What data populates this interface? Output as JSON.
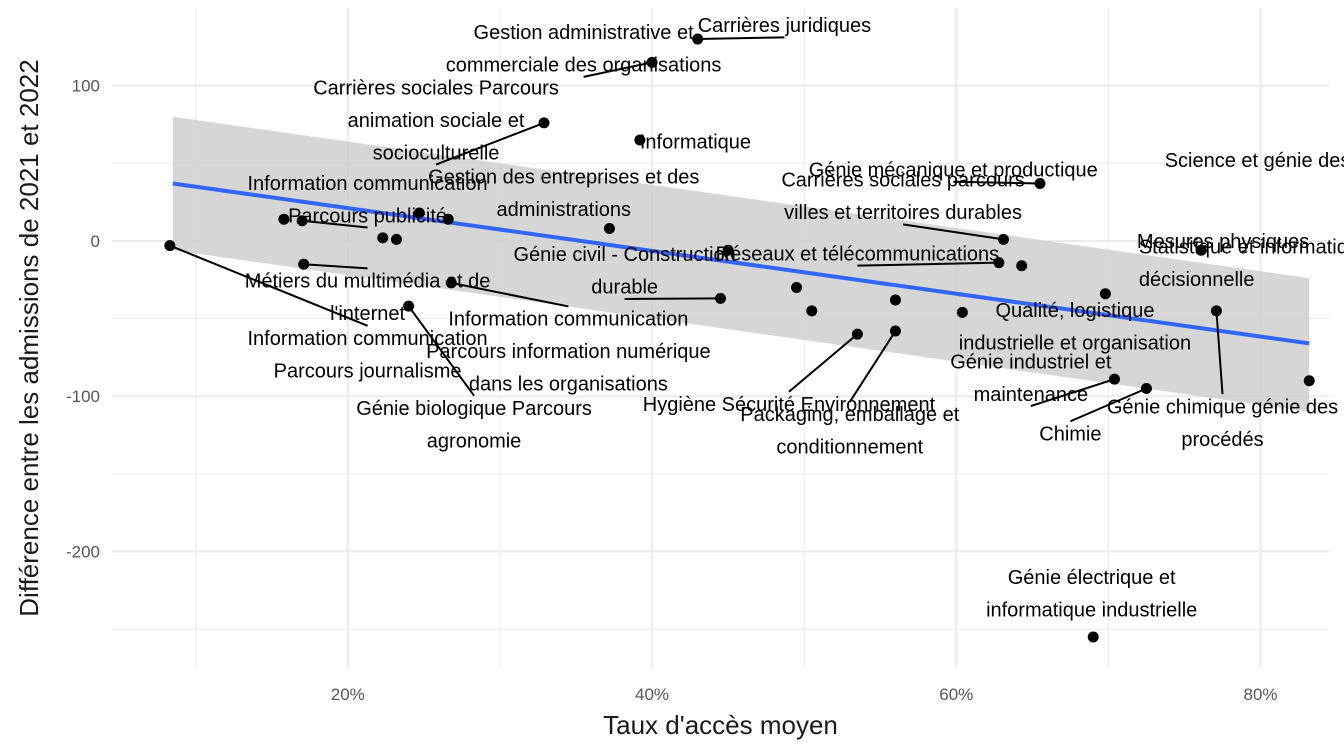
{
  "chart_data": {
    "type": "scatter",
    "title": "",
    "xlabel": "Taux d'accès moyen",
    "ylabel": "Différence entre les admissions de 2021 et 2022",
    "xlim": [
      0.045,
      0.845
    ],
    "ylim": [
      -275,
      150
    ],
    "x_ticks": [
      {
        "value": 0.2,
        "label": "20%"
      },
      {
        "value": 0.4,
        "label": "40%"
      },
      {
        "value": 0.6,
        "label": "60%"
      },
      {
        "value": 0.8,
        "label": "80%"
      }
    ],
    "x_minor_ticks": [
      0.1,
      0.3,
      0.5,
      0.7
    ],
    "y_ticks": [
      {
        "value": 100,
        "label": "100"
      },
      {
        "value": 0,
        "label": "0"
      },
      {
        "value": -100,
        "label": "-100"
      },
      {
        "value": -200,
        "label": "-200"
      }
    ],
    "y_minor_ticks": [
      -250,
      -150,
      -50,
      50
    ],
    "grid": true,
    "colors": {
      "points": "#000000",
      "trend": "#3366FF",
      "ribbon": "#CCCCCC",
      "grid": "#EBEBEB",
      "leader": "#000000"
    },
    "trend": {
      "type": "linear",
      "x": [
        0.085,
        0.832
      ],
      "y": [
        37,
        -66
      ],
      "ci_upper": [
        80,
        -24
      ],
      "ci_lower": [
        -6,
        -110
      ]
    },
    "points": [
      {
        "x": 0.083,
        "y": -3,
        "label": "Information communication\nParcours journalisme",
        "lx": 0.213,
        "ly": -73,
        "anchor": "middle"
      },
      {
        "x": 0.158,
        "y": 14
      },
      {
        "x": 0.17,
        "y": 13,
        "label": "Information communication\nParcours publicité",
        "lx": 0.213,
        "ly": 27,
        "anchor": "middle"
      },
      {
        "x": 0.171,
        "y": -15,
        "label": "Métiers du multimédia et de\nl'internet",
        "lx": 0.213,
        "ly": -36,
        "anchor": "middle"
      },
      {
        "x": 0.223,
        "y": 2
      },
      {
        "x": 0.232,
        "y": 1
      },
      {
        "x": 0.24,
        "y": -42,
        "label": "Génie biologique Parcours\nagronomie",
        "lx": 0.283,
        "ly": -118,
        "anchor": "middle"
      },
      {
        "x": 0.247,
        "y": 18
      },
      {
        "x": 0.266,
        "y": 14
      },
      {
        "x": 0.268,
        "y": -27,
        "label": "Information communication\nParcours information numérique\ndans les organisations",
        "lx": 0.345,
        "ly": -71,
        "anchor": "middle"
      },
      {
        "x": 0.329,
        "y": 76,
        "label": "Carrières sociales Parcours\nanimation sociale et\nsocioculturelle",
        "lx": 0.258,
        "ly": 78,
        "anchor": "middle"
      },
      {
        "x": 0.372,
        "y": 8,
        "label": "Gestion des entreprises et des\nadministrations",
        "lx": 0.342,
        "ly": 31,
        "anchor": "middle"
      },
      {
        "x": 0.392,
        "y": 65,
        "label": "Informatique",
        "lx": 0.392,
        "ly": 64,
        "anchor": "start"
      },
      {
        "x": 0.4,
        "y": 115,
        "label": "Gestion administrative et\ncommerciale des organisations",
        "lx": 0.355,
        "ly": 124,
        "anchor": "middle"
      },
      {
        "x": 0.43,
        "y": 130,
        "label": "Carrières juridiques",
        "lx": 0.487,
        "ly": 139,
        "anchor": "middle"
      },
      {
        "x": 0.445,
        "y": -37,
        "label": "Génie civil - Construction\ndurable",
        "lx": 0.382,
        "ly": -19,
        "anchor": "middle"
      },
      {
        "x": 0.45,
        "y": -6
      },
      {
        "x": 0.495,
        "y": -30
      },
      {
        "x": 0.505,
        "y": -45
      },
      {
        "x": 0.535,
        "y": -60,
        "label": "Hygiène Sécurité Environnement",
        "lx": 0.49,
        "ly": -105,
        "anchor": "middle"
      },
      {
        "x": 0.56,
        "y": -38
      },
      {
        "x": 0.56,
        "y": -58,
        "label": "Packaging, emballage et\nconditionnement",
        "lx": 0.53,
        "ly": -122,
        "anchor": "middle"
      },
      {
        "x": 0.604,
        "y": -46
      },
      {
        "x": 0.628,
        "y": -14,
        "label": "Réseaux et télécommunications",
        "lx": 0.535,
        "ly": -8,
        "anchor": "middle"
      },
      {
        "x": 0.631,
        "y": 1,
        "label": "Carrières sociales parcours\nvilles et territoires durables",
        "lx": 0.565,
        "ly": 29,
        "anchor": "middle"
      },
      {
        "x": 0.643,
        "y": -16,
        "label": "Statistique et informatique\ndécisionnelle",
        "lx": 0.72,
        "ly": -14,
        "anchor": "start"
      },
      {
        "x": 0.655,
        "y": 37,
        "label": "Génie mécanique et productique",
        "lx": 0.598,
        "ly": 46,
        "anchor": "middle"
      },
      {
        "x": 0.69,
        "y": -255,
        "label": "Génie électrique et\ninformatique industrielle",
        "lx": 0.689,
        "ly": -227,
        "anchor": "middle"
      },
      {
        "x": 0.698,
        "y": -34,
        "label": "Qualité, logistique\nindustrielle et organisation",
        "lx": 0.678,
        "ly": -55,
        "anchor": "middle"
      },
      {
        "x": 0.704,
        "y": -89,
        "label": "Génie industriel et\nmaintenance",
        "lx": 0.649,
        "ly": -88,
        "anchor": "middle"
      },
      {
        "x": 0.725,
        "y": -95,
        "label": "Chimie",
        "lx": 0.675,
        "ly": -124,
        "anchor": "middle"
      },
      {
        "x": 0.761,
        "y": -6,
        "label": "Science et génie des matériaux",
        "lx": 0.737,
        "ly": 52,
        "anchor": "start"
      },
      {
        "x": 0.771,
        "y": -45,
        "label": "Génie chimique génie des\nprocédés",
        "lx": 0.775,
        "ly": -117,
        "anchor": "middle"
      },
      {
        "x": 0.832,
        "y": -90,
        "label": "Mesures physiques",
        "lx": 0.832,
        "ly": 0,
        "anchor": "end"
      }
    ]
  }
}
